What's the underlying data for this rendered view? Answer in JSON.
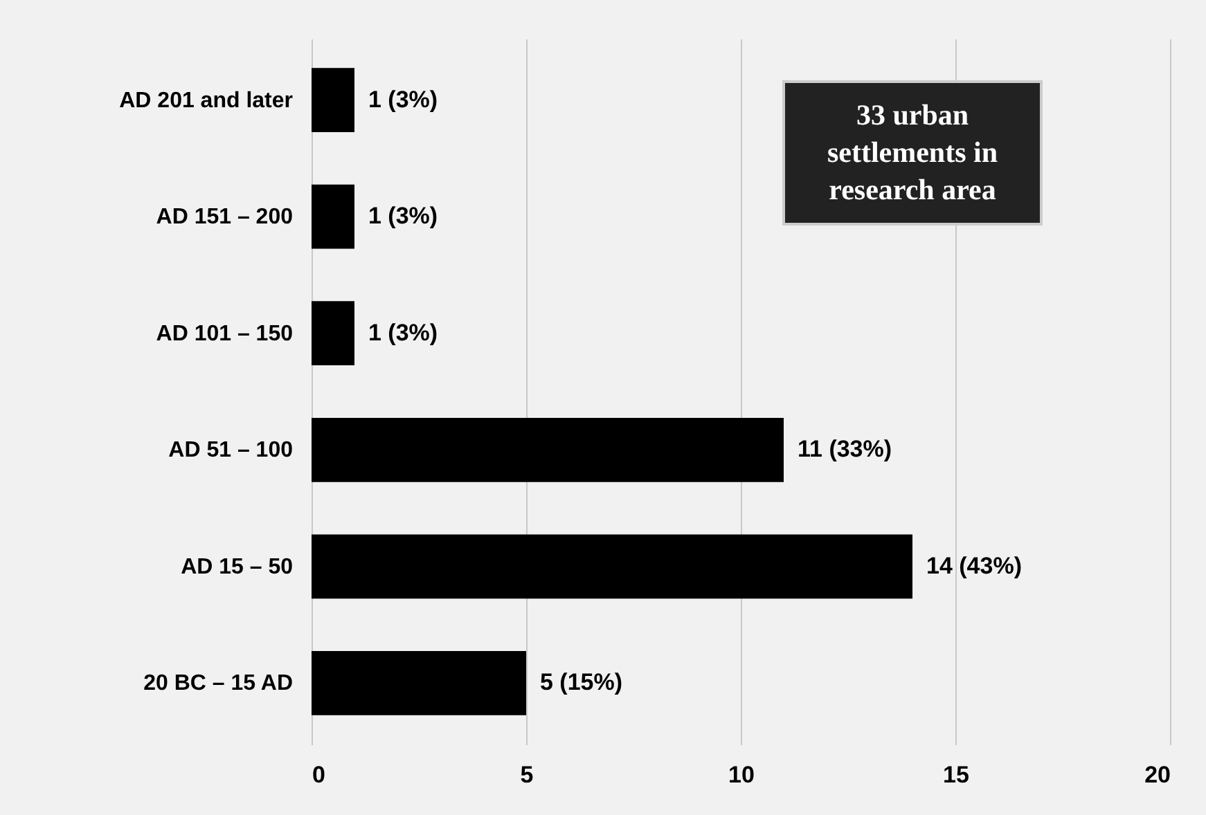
{
  "chart_data": {
    "type": "bar",
    "orientation": "horizontal",
    "categories": [
      "AD 201 and later",
      "AD 151 – 200",
      "AD 101 – 150",
      "AD 51 – 100",
      "AD 15 – 50",
      "20 BC – 15 AD"
    ],
    "values": [
      1,
      1,
      1,
      11,
      14,
      5
    ],
    "value_labels": [
      "1 (3%)",
      "1 (3%)",
      "1 (3%)",
      "11 (33%)",
      "14 (43%)",
      "5 (15%)"
    ],
    "color": "#000000",
    "xlim": [
      0,
      20
    ],
    "xticks": [
      0,
      5,
      10,
      15,
      20
    ],
    "grid": "x",
    "annotations": [
      "33 urban settlements in research area"
    ]
  }
}
